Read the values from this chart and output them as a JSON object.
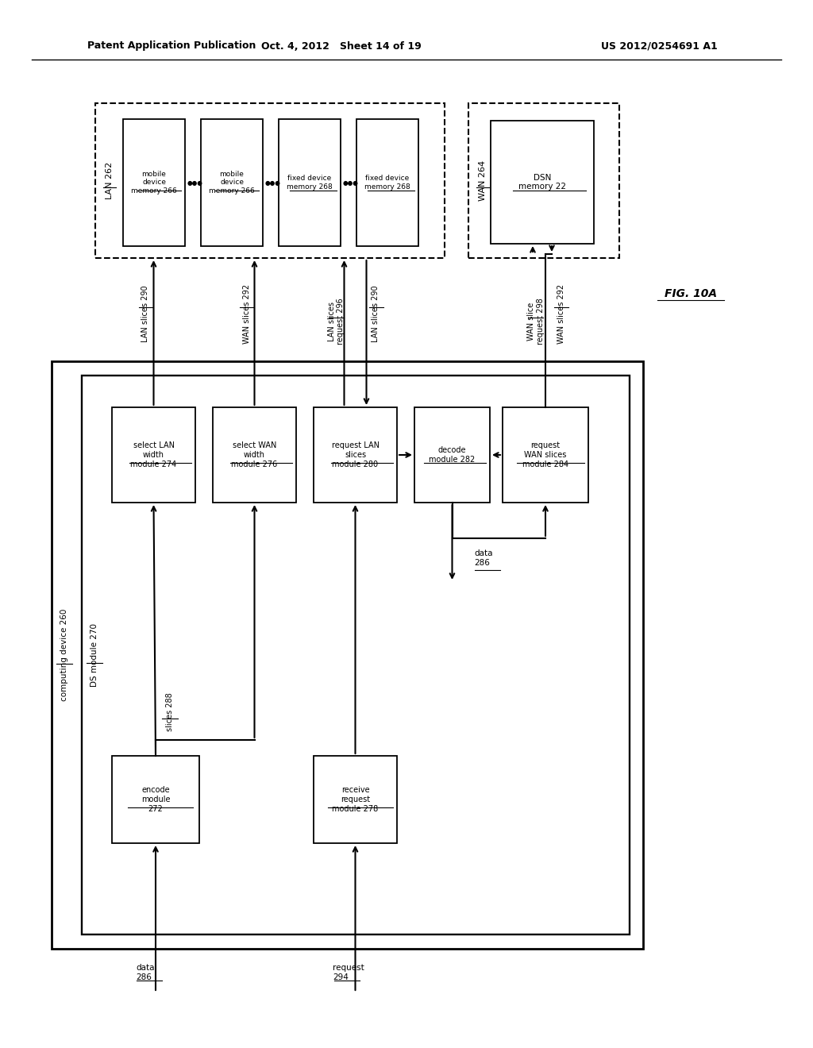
{
  "header_left": "Patent Application Publication",
  "header_mid": "Oct. 4, 2012   Sheet 14 of 19",
  "header_right": "US 2012/0254691 A1",
  "fig_label": "FIG. 10A",
  "bg_color": "#ffffff"
}
